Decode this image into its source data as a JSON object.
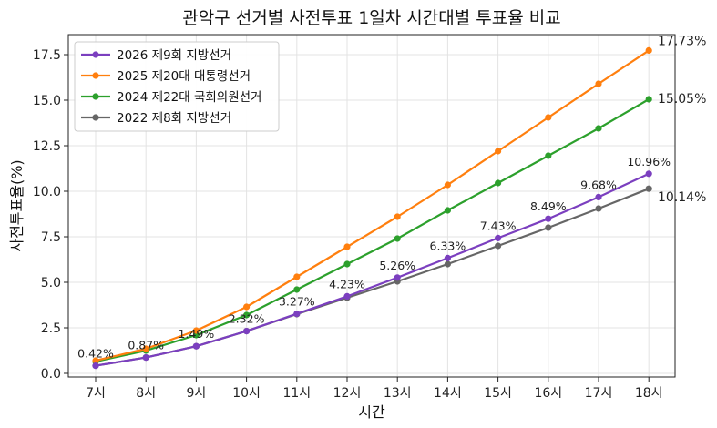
{
  "chart_data": {
    "type": "line",
    "title": "관악구 선거별 사전투표 1일차 시간대별 투표율 비교",
    "xlabel": "시간",
    "ylabel": "사전투표율(%)",
    "categories": [
      "7시",
      "8시",
      "9시",
      "10시",
      "11시",
      "12시",
      "13시",
      "14시",
      "15시",
      "16시",
      "17시",
      "18시"
    ],
    "ylim": [
      -0.2,
      18.6
    ],
    "yticks": [
      0.0,
      2.5,
      5.0,
      7.5,
      10.0,
      12.5,
      15.0,
      17.5
    ],
    "ytick_labels": [
      "0.0",
      "2.5",
      "5.0",
      "7.5",
      "10.0",
      "12.5",
      "15.0",
      "17.5"
    ],
    "grid": true,
    "legend_position": "top-left",
    "series": [
      {
        "name": "2026 제9회 지방선거",
        "color": "#7b3fbf",
        "values": [
          0.42,
          0.87,
          1.49,
          2.32,
          3.27,
          4.23,
          5.26,
          6.33,
          7.43,
          8.49,
          9.68,
          10.96
        ],
        "labels": [
          "0.42%",
          "0.87%",
          "1.49%",
          "2.32%",
          "3.27%",
          "4.23%",
          "5.26%",
          "6.33%",
          "7.43%",
          "8.49%",
          "9.68%",
          "10.96%"
        ]
      },
      {
        "name": "2025 제20대 대통령선거",
        "color": "#ff7f0e",
        "values": [
          0.7,
          1.35,
          2.35,
          3.65,
          5.3,
          6.95,
          8.6,
          10.35,
          12.2,
          14.05,
          15.9,
          17.73
        ],
        "end_label": "17.73%"
      },
      {
        "name": "2024 제22대 국회의원선거",
        "color": "#2ca02c",
        "values": [
          0.65,
          1.25,
          2.1,
          3.2,
          4.6,
          6.0,
          7.4,
          8.95,
          10.45,
          11.95,
          13.45,
          15.05
        ],
        "end_label": "15.05%"
      },
      {
        "name": "2022 제8회 지방선거",
        "color": "#666666",
        "values": [
          0.42,
          0.87,
          1.49,
          2.32,
          3.25,
          4.15,
          5.05,
          6.0,
          7.0,
          8.0,
          9.05,
          10.14
        ],
        "end_label": "10.14%"
      }
    ]
  }
}
